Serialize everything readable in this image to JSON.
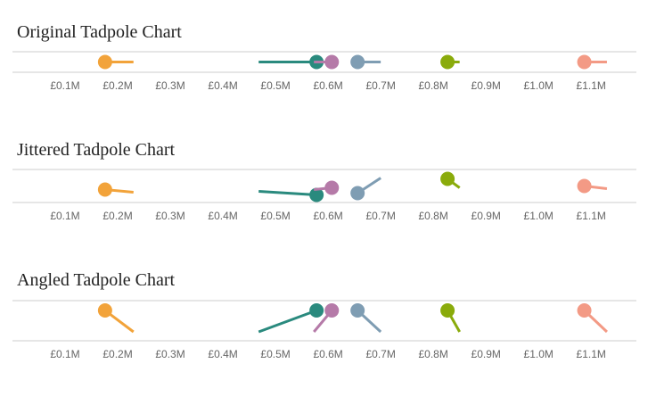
{
  "chart_data": [
    {
      "type": "tadpole",
      "style": "flat",
      "title": "Original Tadpole Chart",
      "heads": [
        176000,
        578000,
        607000,
        656000,
        827000,
        1087000
      ],
      "tails": [
        230000,
        468000,
        573000,
        700000,
        850000,
        1130000
      ],
      "colors": [
        "#f2a33a",
        "#2a8a7e",
        "#b57aa8",
        "#7f9db3",
        "#8aab0b",
        "#f39a85"
      ],
      "xlim": [
        0,
        1186000
      ],
      "xticks": [
        {
          "value": 100000,
          "label": "£0.1M"
        },
        {
          "value": 200000,
          "label": "£0.2M"
        },
        {
          "value": 300000,
          "label": "£0.3M"
        },
        {
          "value": 400000,
          "label": "£0.4M"
        },
        {
          "value": 500000,
          "label": "£0.5M"
        },
        {
          "value": 600000,
          "label": "£0.6M"
        },
        {
          "value": 700000,
          "label": "£0.7M"
        },
        {
          "value": 800000,
          "label": "£0.8M"
        },
        {
          "value": 900000,
          "label": "£0.9M"
        },
        {
          "value": 1000000,
          "label": "£1.0M"
        },
        {
          "value": 1100000,
          "label": "£1.1M"
        }
      ]
    },
    {
      "type": "tadpole",
      "style": "jittered",
      "title": "Jittered Tadpole Chart",
      "heads": [
        176000,
        578000,
        607000,
        656000,
        827000,
        1087000
      ],
      "tails": [
        230000,
        468000,
        573000,
        700000,
        850000,
        1130000
      ],
      "colors": [
        "#f2a33a",
        "#2a8a7e",
        "#b57aa8",
        "#7f9db3",
        "#8aab0b",
        "#f39a85"
      ],
      "xlim": [
        0,
        1186000
      ],
      "xticks": [
        {
          "value": 100000,
          "label": "£0.1M"
        },
        {
          "value": 200000,
          "label": "£0.2M"
        },
        {
          "value": 300000,
          "label": "£0.3M"
        },
        {
          "value": 400000,
          "label": "£0.4M"
        },
        {
          "value": 500000,
          "label": "£0.5M"
        },
        {
          "value": 600000,
          "label": "£0.6M"
        },
        {
          "value": 700000,
          "label": "£0.7M"
        },
        {
          "value": 800000,
          "label": "£0.8M"
        },
        {
          "value": 900000,
          "label": "£0.9M"
        },
        {
          "value": 1000000,
          "label": "£1.0M"
        },
        {
          "value": 1100000,
          "label": "£1.1M"
        }
      ]
    },
    {
      "type": "tadpole",
      "style": "angled",
      "title": "Angled Tadpole Chart",
      "heads": [
        176000,
        578000,
        607000,
        656000,
        827000,
        1087000
      ],
      "tails": [
        230000,
        468000,
        573000,
        700000,
        850000,
        1130000
      ],
      "colors": [
        "#f2a33a",
        "#2a8a7e",
        "#b57aa8",
        "#7f9db3",
        "#8aab0b",
        "#f39a85"
      ],
      "xlim": [
        0,
        1186000
      ],
      "xticks": [
        {
          "value": 100000,
          "label": "£0.1M"
        },
        {
          "value": 200000,
          "label": "£0.2M"
        },
        {
          "value": 300000,
          "label": "£0.3M"
        },
        {
          "value": 400000,
          "label": "£0.4M"
        },
        {
          "value": 500000,
          "label": "£0.5M"
        },
        {
          "value": 600000,
          "label": "£0.6M"
        },
        {
          "value": 700000,
          "label": "£0.7M"
        },
        {
          "value": 800000,
          "label": "£0.8M"
        },
        {
          "value": 900000,
          "label": "£0.9M"
        },
        {
          "value": 1000000,
          "label": "£1.0M"
        },
        {
          "value": 1100000,
          "label": "£1.1M"
        }
      ]
    }
  ]
}
